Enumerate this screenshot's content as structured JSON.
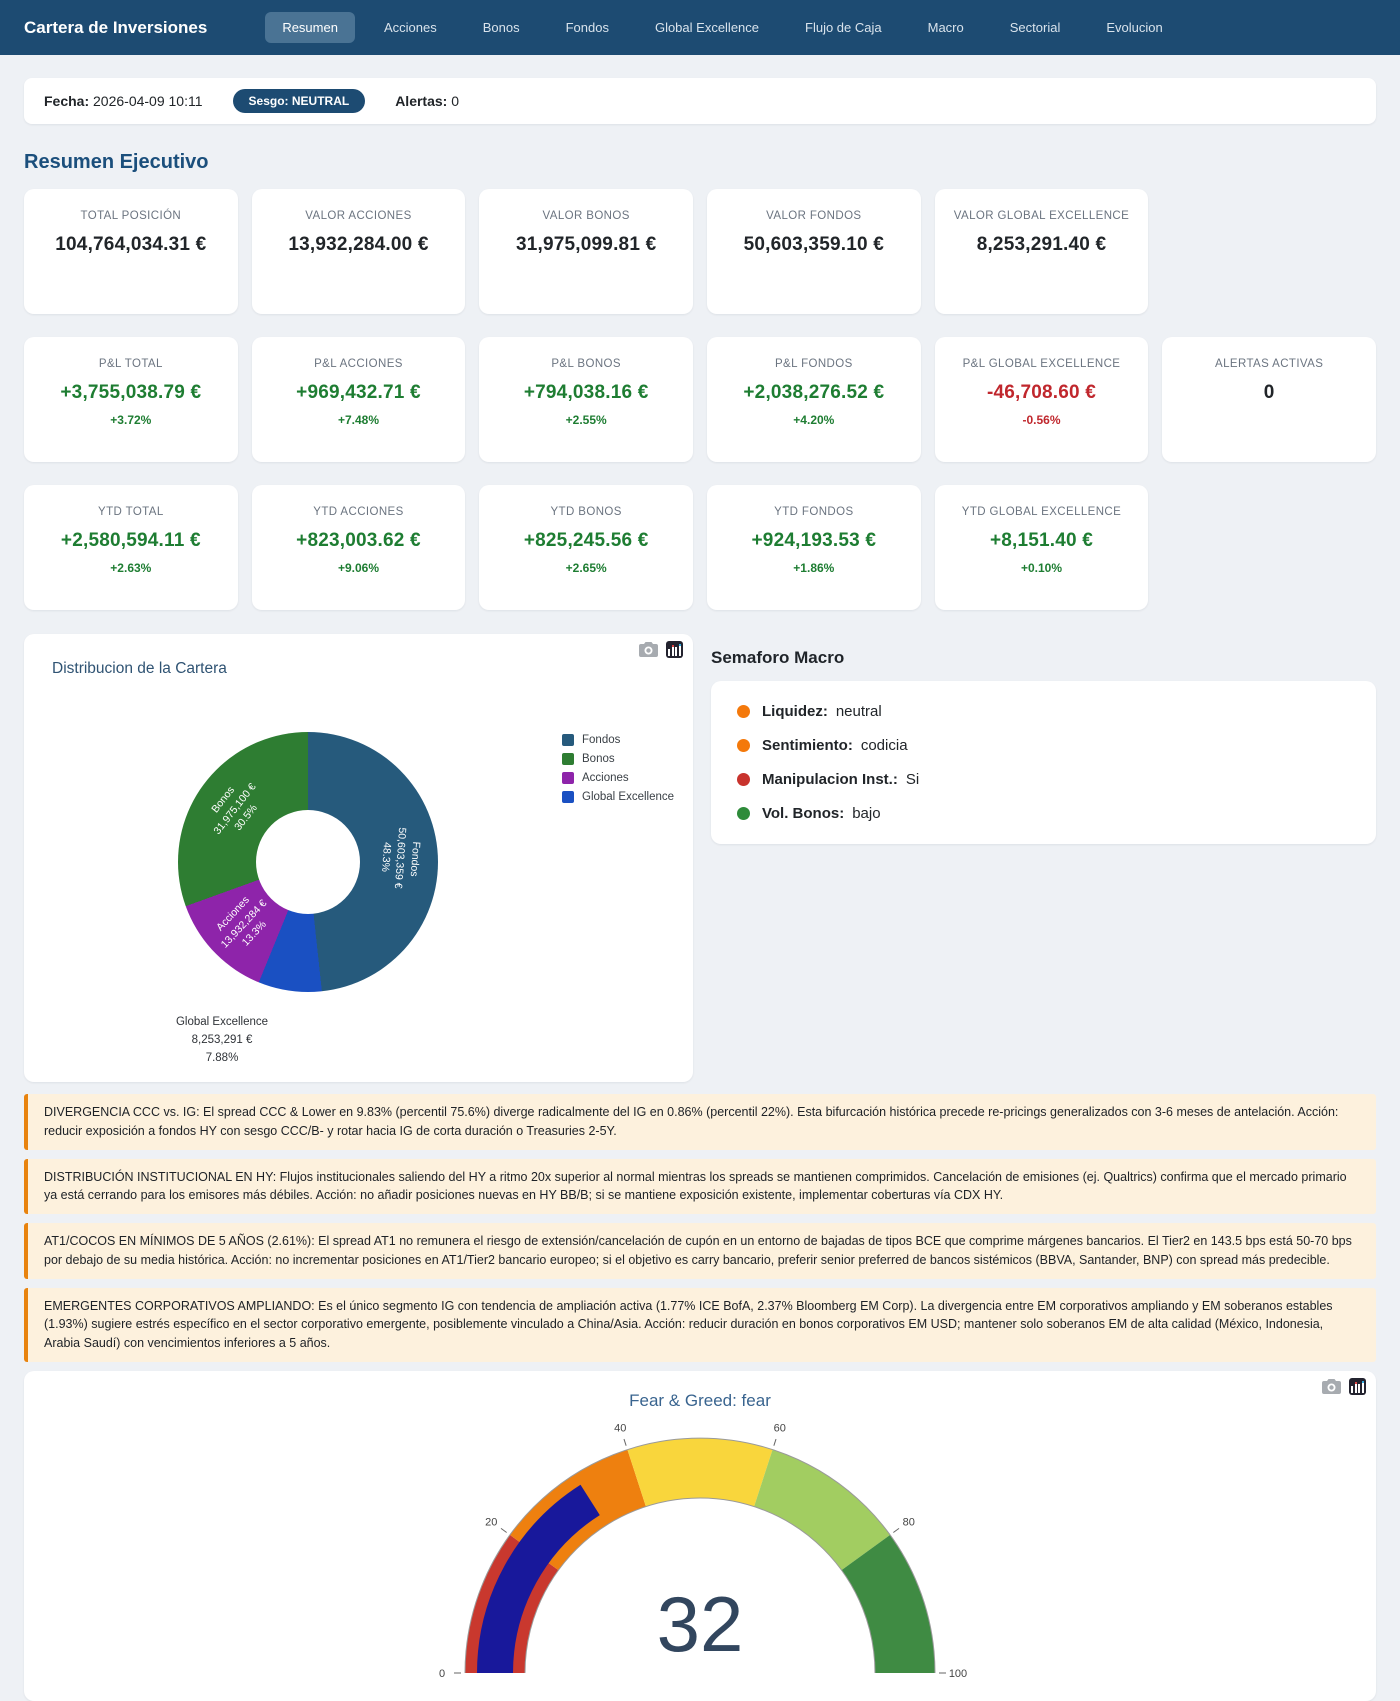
{
  "nav": {
    "brand": "Cartera de Inversiones",
    "tabs": [
      {
        "label": "Resumen",
        "active": true
      },
      {
        "label": "Acciones",
        "active": false
      },
      {
        "label": "Bonos",
        "active": false
      },
      {
        "label": "Fondos",
        "active": false
      },
      {
        "label": "Global Excellence",
        "active": false
      },
      {
        "label": "Flujo de Caja",
        "active": false
      },
      {
        "label": "Macro",
        "active": false
      },
      {
        "label": "Sectorial",
        "active": false
      },
      {
        "label": "Evolucion",
        "active": false
      }
    ]
  },
  "infobar": {
    "fecha_label": "Fecha:",
    "fecha_value": "2026-04-09 10:11",
    "sesgo_badge": "Sesgo: NEUTRAL",
    "alertas_label": "Alertas:",
    "alertas_value": "0"
  },
  "section_title": "Resumen Ejecutivo",
  "kpi_rows": [
    [
      {
        "label": "TOTAL POSICIÓN",
        "value": "104,764,034.31 €",
        "tone": "dark"
      },
      {
        "label": "VALOR ACCIONES",
        "value": "13,932,284.00 €",
        "tone": "dark"
      },
      {
        "label": "VALOR BONOS",
        "value": "31,975,099.81 €",
        "tone": "dark"
      },
      {
        "label": "VALOR FONDOS",
        "value": "50,603,359.10 €",
        "tone": "dark"
      },
      {
        "label": "VALOR GLOBAL EXCELLENCE",
        "value": "8,253,291.40 €",
        "tone": "dark"
      }
    ],
    [
      {
        "label": "P&L TOTAL",
        "value": "+3,755,038.79 €",
        "sub": "+3.72%",
        "tone": "pos"
      },
      {
        "label": "P&L ACCIONES",
        "value": "+969,432.71 €",
        "sub": "+7.48%",
        "tone": "pos"
      },
      {
        "label": "P&L BONOS",
        "value": "+794,038.16 €",
        "sub": "+2.55%",
        "tone": "pos"
      },
      {
        "label": "P&L FONDOS",
        "value": "+2,038,276.52 €",
        "sub": "+4.20%",
        "tone": "pos"
      },
      {
        "label": "P&L GLOBAL EXCELLENCE",
        "value": "-46,708.60 €",
        "sub": "-0.56%",
        "tone": "neg"
      },
      {
        "label": "ALERTAS ACTIVAS",
        "value": "0",
        "tone": "dark"
      }
    ],
    [
      {
        "label": "YTD TOTAL",
        "value": "+2,580,594.11 €",
        "sub": "+2.63%",
        "tone": "pos"
      },
      {
        "label": "YTD ACCIONES",
        "value": "+823,003.62 €",
        "sub": "+9.06%",
        "tone": "pos"
      },
      {
        "label": "YTD BONOS",
        "value": "+825,245.56 €",
        "sub": "+2.65%",
        "tone": "pos"
      },
      {
        "label": "YTD FONDOS",
        "value": "+924,193.53 €",
        "sub": "+1.86%",
        "tone": "pos"
      },
      {
        "label": "YTD GLOBAL EXCELLENCE",
        "value": "+8,151.40 €",
        "sub": "+0.10%",
        "tone": "pos"
      }
    ]
  ],
  "semaforo": {
    "heading": "Semaforo Macro",
    "items": [
      {
        "label": "Liquidez:",
        "value": "neutral",
        "color": "#f4790b"
      },
      {
        "label": "Sentimiento:",
        "value": "codicia",
        "color": "#f4790b"
      },
      {
        "label": "Manipulacion Inst.:",
        "value": "Si",
        "color": "#c8332d"
      },
      {
        "label": "Vol. Bonos:",
        "value": "bajo",
        "color": "#2e8b3a"
      }
    ]
  },
  "alerts": [
    "DIVERGENCIA CCC vs. IG: El spread CCC & Lower en 9.83% (percentil 75.6%) diverge radicalmente del IG en 0.86% (percentil 22%). Esta bifurcación histórica precede re-pricings generalizados con 3-6 meses de antelación. Acción: reducir exposición a fondos HY con sesgo CCC/B- y rotar hacia IG de corta duración o Treasuries 2-5Y.",
    "DISTRIBUCIÓN INSTITUCIONAL EN HY: Flujos institucionales saliendo del HY a ritmo 20x superior al normal mientras los spreads se mantienen comprimidos. Cancelación de emisiones (ej. Qualtrics) confirma que el mercado primario ya está cerrando para los emisores más débiles. Acción: no añadir posiciones nuevas en HY BB/B; si se mantiene exposición existente, implementar coberturas vía CDX HY.",
    "AT1/COCOS EN MÍNIMOS DE 5 AÑOS (2.61%): El spread AT1 no remunera el riesgo de extensión/cancelación de cupón en un entorno de bajadas de tipos BCE que comprime márgenes bancarios. El Tier2 en 143.5 bps está 50-70 bps por debajo de su media histórica. Acción: no incrementar posiciones en AT1/Tier2 bancario europeo; si el objetivo es carry bancario, preferir senior preferred de bancos sistémicos (BBVA, Santander, BNP) con spread más predecible.",
    "EMERGENTES CORPORATIVOS AMPLIANDO: Es el único segmento IG con tendencia de ampliación activa (1.77% ICE BofA, 2.37% Bloomberg EM Corp). La divergencia entre EM corporativos ampliando y EM soberanos estables (1.93%) sugiere estrés específico en el sector corporativo emergente, posiblemente vinculado a China/Asia. Acción: reducir duración en bonos corporativos EM USD; mantener solo soberanos EM de alta calidad (México, Indonesia, Arabia Saudí) con vencimientos inferiores a 5 años."
  ],
  "chart_data": [
    {
      "type": "pie",
      "title": "Distribucion de la Cartera",
      "hole": 0.4,
      "legend_position": "right",
      "labels": [
        "Fondos",
        "Bonos",
        "Acciones",
        "Global Excellence"
      ],
      "values": [
        50603359,
        31975100,
        13932284,
        8253291
      ],
      "percents": [
        48.3,
        30.5,
        13.3,
        7.88
      ],
      "value_labels": [
        "50,603,359 €",
        "31,975,100 €",
        "13,932,284 €",
        "8,253,291 €"
      ],
      "percent_labels": [
        "48.3%",
        "30.5%",
        "13.3%",
        "7.88%"
      ],
      "colors": [
        "#265a7c",
        "#2e7d32",
        "#8e24aa",
        "#1a50c2"
      ]
    },
    {
      "type": "gauge",
      "title": "Fear & Greed: fear",
      "value": 32,
      "range": [
        0,
        100
      ],
      "ticks": [
        0,
        20,
        40,
        60,
        80,
        100
      ],
      "bands": [
        {
          "range": [
            0,
            20
          ],
          "color": "#c9382e"
        },
        {
          "range": [
            20,
            40
          ],
          "color": "#ee800f"
        },
        {
          "range": [
            40,
            60
          ],
          "color": "#f9d63c"
        },
        {
          "range": [
            60,
            80
          ],
          "color": "#a2cd61"
        },
        {
          "range": [
            80,
            100
          ],
          "color": "#3f8b43"
        }
      ],
      "bar_color": "#18189b",
      "number_color": "#32465e"
    }
  ]
}
